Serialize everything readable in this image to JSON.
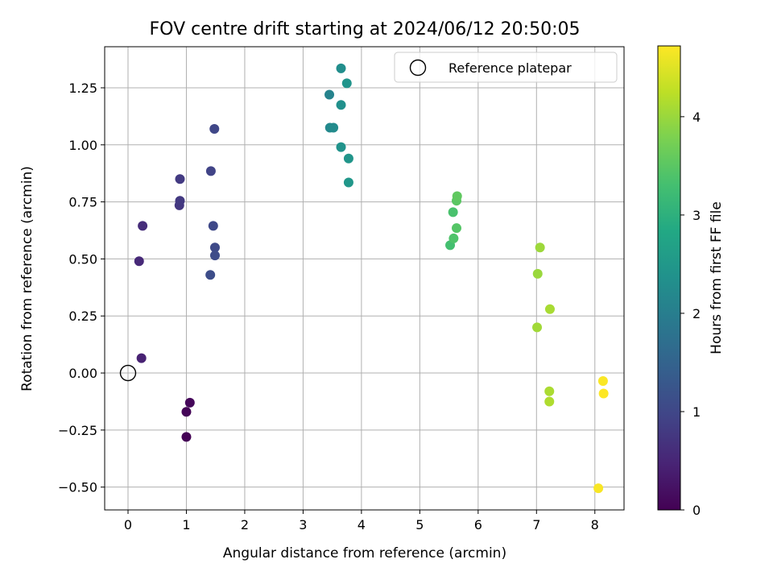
{
  "chart_data": {
    "type": "scatter",
    "title": "FOV centre drift starting at 2024/06/12 20:50:05",
    "xlabel": "Angular distance from reference (arcmin)",
    "ylabel": "Rotation from reference (arcmin)",
    "xlim": [
      -0.4,
      8.5
    ],
    "ylim": [
      -0.6,
      1.43
    ],
    "x_ticks": [
      0,
      1,
      2,
      3,
      4,
      5,
      6,
      7,
      8
    ],
    "y_ticks": [
      -0.5,
      -0.25,
      0.0,
      0.25,
      0.5,
      0.75,
      1.0,
      1.25
    ],
    "y_tick_labels": [
      "−0.50",
      "−0.25",
      "0.00",
      "0.25",
      "0.50",
      "0.75",
      "1.00",
      "1.25"
    ],
    "grid": true,
    "legend": {
      "placement": "top-right",
      "entries": [
        "Reference platepar"
      ]
    },
    "reference_point": {
      "x": 0,
      "y": 0
    },
    "colorbar": {
      "label": "Hours from first FF file",
      "range": [
        0,
        4.72
      ],
      "ticks": [
        0,
        1,
        2,
        3,
        4
      ],
      "colormap": "viridis"
    },
    "points": [
      {
        "x": 1.0,
        "y": -0.28,
        "c": 0.02
      },
      {
        "x": 1.0,
        "y": -0.17,
        "c": 0.05
      },
      {
        "x": 1.06,
        "y": -0.13,
        "c": 0.08
      },
      {
        "x": 0.23,
        "y": 0.065,
        "c": 0.45
      },
      {
        "x": 0.19,
        "y": 0.49,
        "c": 0.55
      },
      {
        "x": 0.25,
        "y": 0.645,
        "c": 0.6
      },
      {
        "x": 0.88,
        "y": 0.735,
        "c": 0.75
      },
      {
        "x": 0.89,
        "y": 0.755,
        "c": 0.78
      },
      {
        "x": 0.89,
        "y": 0.85,
        "c": 0.8
      },
      {
        "x": 1.42,
        "y": 0.885,
        "c": 0.95
      },
      {
        "x": 1.48,
        "y": 1.07,
        "c": 1.0
      },
      {
        "x": 1.46,
        "y": 0.645,
        "c": 1.02
      },
      {
        "x": 1.49,
        "y": 0.55,
        "c": 1.05
      },
      {
        "x": 1.49,
        "y": 0.515,
        "c": 1.08
      },
      {
        "x": 1.41,
        "y": 0.43,
        "c": 1.1
      },
      {
        "x": 3.45,
        "y": 1.22,
        "c": 2.1
      },
      {
        "x": 3.46,
        "y": 1.075,
        "c": 2.2
      },
      {
        "x": 3.52,
        "y": 1.075,
        "c": 2.25
      },
      {
        "x": 3.65,
        "y": 1.335,
        "c": 2.3
      },
      {
        "x": 3.65,
        "y": 1.175,
        "c": 2.35
      },
      {
        "x": 3.65,
        "y": 0.99,
        "c": 2.4
      },
      {
        "x": 3.75,
        "y": 1.27,
        "c": 2.42
      },
      {
        "x": 3.78,
        "y": 0.94,
        "c": 2.45
      },
      {
        "x": 3.78,
        "y": 0.835,
        "c": 2.48
      },
      {
        "x": 5.52,
        "y": 0.56,
        "c": 3.3
      },
      {
        "x": 5.57,
        "y": 0.705,
        "c": 3.35
      },
      {
        "x": 5.58,
        "y": 0.59,
        "c": 3.4
      },
      {
        "x": 5.63,
        "y": 0.635,
        "c": 3.45
      },
      {
        "x": 5.63,
        "y": 0.755,
        "c": 3.5
      },
      {
        "x": 5.64,
        "y": 0.775,
        "c": 3.55
      },
      {
        "x": 7.02,
        "y": 0.435,
        "c": 4.0
      },
      {
        "x": 7.06,
        "y": 0.55,
        "c": 4.02
      },
      {
        "x": 7.01,
        "y": 0.2,
        "c": 4.05
      },
      {
        "x": 7.23,
        "y": 0.28,
        "c": 4.1
      },
      {
        "x": 7.22,
        "y": -0.08,
        "c": 4.12
      },
      {
        "x": 7.22,
        "y": -0.125,
        "c": 4.15
      },
      {
        "x": 8.06,
        "y": -0.505,
        "c": 4.68
      },
      {
        "x": 8.14,
        "y": -0.035,
        "c": 4.7
      },
      {
        "x": 8.15,
        "y": -0.09,
        "c": 4.72
      }
    ]
  }
}
